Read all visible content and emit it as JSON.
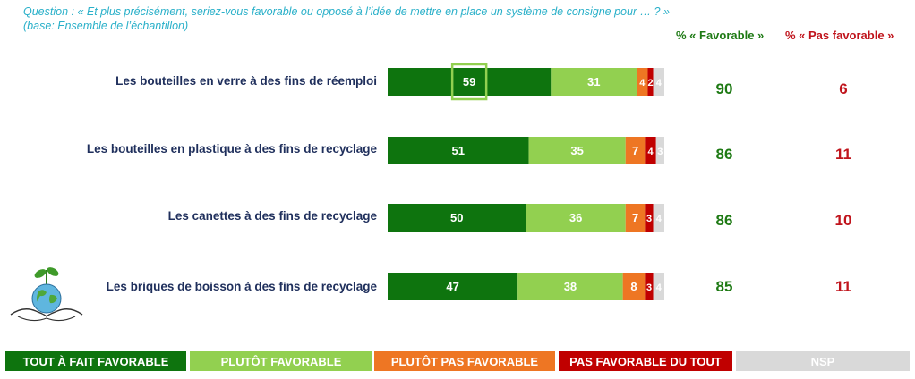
{
  "question": {
    "line1": "Question : « Et plus précisément, seriez-vous favorable ou opposé à l’idée de mettre en place un système de consigne pour … ? »",
    "line2": "(base: Ensemble de l’échantillon)"
  },
  "headers": {
    "favorable": "% « Favorable »",
    "pas_favorable": "% « Pas favorable »"
  },
  "colors": {
    "tout_a_fait": "#0e740e",
    "plutot_fav": "#92d050",
    "plutot_pas": "#ee7623",
    "pas_du_tout": "#c00000",
    "nsp": "#d9d9d9",
    "highlight": "#92d050"
  },
  "rows": [
    {
      "label": "Les bouteilles en verre à des fins de réemploi",
      "favorable": "90",
      "pas_favorable": "6"
    },
    {
      "label": "Les bouteilles en plastique à des fins de recyclage",
      "favorable": "86",
      "pas_favorable": "11"
    },
    {
      "label": "Les canettes à des fins de recyclage",
      "favorable": "86",
      "pas_favorable": "10"
    },
    {
      "label": "Les briques de boisson à des fins de recyclage",
      "favorable": "85",
      "pas_favorable": "11"
    }
  ],
  "legend": [
    "TOUT À FAIT FAVORABLE",
    "PLUTÔT FAVORABLE",
    "PLUTÔT PAS FAVORABLE",
    "PAS FAVORABLE DU TOUT",
    "NSP"
  ],
  "chart_data": {
    "type": "bar",
    "orientation": "horizontal",
    "stacked": true,
    "categories": [
      "Les bouteilles en verre à des fins de réemploi",
      "Les bouteilles en plastique à des fins de recyclage",
      "Les canettes à des fins de recyclage",
      "Les briques de boisson à des fins de recyclage"
    ],
    "series": [
      {
        "name": "TOUT À FAIT FAVORABLE",
        "values": [
          59,
          51,
          50,
          47
        ]
      },
      {
        "name": "PLUTÔT FAVORABLE",
        "values": [
          31,
          35,
          36,
          38
        ]
      },
      {
        "name": "PLUTÔT PAS FAVORABLE",
        "values": [
          4,
          7,
          7,
          8
        ]
      },
      {
        "name": "PAS FAVORABLE DU TOUT",
        "values": [
          2,
          4,
          3,
          3
        ]
      },
      {
        "name": "NSP",
        "values": [
          4,
          3,
          4,
          4
        ]
      }
    ],
    "highlighted": {
      "series": "TOUT À FAIT FAVORABLE",
      "category": "Les bouteilles en verre à des fins de réemploi"
    },
    "legend_position": "bottom",
    "grid": false
  }
}
